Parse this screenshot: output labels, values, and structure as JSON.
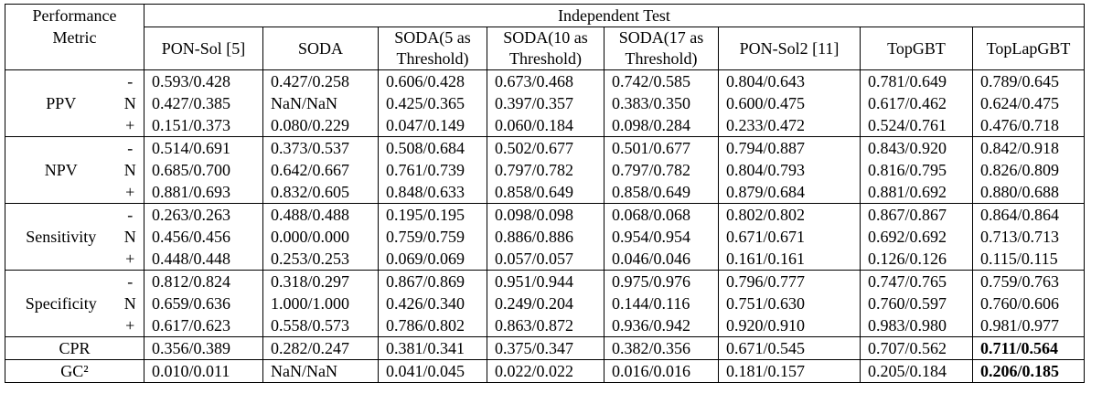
{
  "header": {
    "metric": "Performance Metric",
    "test": "Independent Test",
    "columns": [
      "PON-Sol [5]",
      "SODA",
      "SODA(5 as Threshold)",
      "SODA(10 as Threshold)",
      "SODA(17 as Threshold)",
      "PON-Sol2 [11]",
      "TopGBT",
      "TopLapGBT"
    ]
  },
  "groups": [
    {
      "name": "PPV",
      "rows": [
        {
          "sign": "-",
          "values": [
            "0.593/0.428",
            "0.427/0.258",
            "0.606/0.428",
            "0.673/0.468",
            "0.742/0.585",
            "0.804/0.643",
            "0.781/0.649",
            "0.789/0.645"
          ]
        },
        {
          "sign": "N",
          "values": [
            "0.427/0.385",
            "NaN/NaN",
            "0.425/0.365",
            "0.397/0.357",
            "0.383/0.350",
            "0.600/0.475",
            "0.617/0.462",
            "0.624/0.475"
          ]
        },
        {
          "sign": "+",
          "values": [
            "0.151/0.373",
            "0.080/0.229",
            "0.047/0.149",
            "0.060/0.184",
            "0.098/0.284",
            "0.233/0.472",
            "0.524/0.761",
            "0.476/0.718"
          ]
        }
      ]
    },
    {
      "name": "NPV",
      "rows": [
        {
          "sign": "-",
          "values": [
            "0.514/0.691",
            "0.373/0.537",
            "0.508/0.684",
            "0.502/0.677",
            "0.501/0.677",
            "0.794/0.887",
            "0.843/0.920",
            "0.842/0.918"
          ]
        },
        {
          "sign": "N",
          "values": [
            "0.685/0.700",
            "0.642/0.667",
            "0.761/0.739",
            "0.797/0.782",
            "0.797/0.782",
            "0.804/0.793",
            "0.816/0.795",
            "0.826/0.809"
          ]
        },
        {
          "sign": "+",
          "values": [
            "0.881/0.693",
            "0.832/0.605",
            "0.848/0.633",
            "0.858/0.649",
            "0.858/0.649",
            "0.879/0.684",
            "0.881/0.692",
            "0.880/0.688"
          ]
        }
      ]
    },
    {
      "name": "Sensitivity",
      "rows": [
        {
          "sign": "-",
          "values": [
            "0.263/0.263",
            "0.488/0.488",
            "0.195/0.195",
            "0.098/0.098",
            "0.068/0.068",
            "0.802/0.802",
            "0.867/0.867",
            "0.864/0.864"
          ]
        },
        {
          "sign": "N",
          "values": [
            "0.456/0.456",
            "0.000/0.000",
            "0.759/0.759",
            "0.886/0.886",
            "0.954/0.954",
            "0.671/0.671",
            "0.692/0.692",
            "0.713/0.713"
          ]
        },
        {
          "sign": "+",
          "values": [
            "0.448/0.448",
            "0.253/0.253",
            "0.069/0.069",
            "0.057/0.057",
            "0.046/0.046",
            "0.161/0.161",
            "0.126/0.126",
            "0.115/0.115"
          ]
        }
      ]
    },
    {
      "name": "Specificity",
      "rows": [
        {
          "sign": "-",
          "values": [
            "0.812/0.824",
            "0.318/0.297",
            "0.867/0.869",
            "0.951/0.944",
            "0.975/0.976",
            "0.796/0.777",
            "0.747/0.765",
            "0.759/0.763"
          ]
        },
        {
          "sign": "N",
          "values": [
            "0.659/0.636",
            "1.000/1.000",
            "0.426/0.340",
            "0.249/0.204",
            "0.144/0.116",
            "0.751/0.630",
            "0.760/0.597",
            "0.760/0.606"
          ]
        },
        {
          "sign": "+",
          "values": [
            "0.617/0.623",
            "0.558/0.573",
            "0.786/0.802",
            "0.863/0.872",
            "0.936/0.942",
            "0.920/0.910",
            "0.983/0.980",
            "0.981/0.977"
          ]
        }
      ]
    }
  ],
  "summary": [
    {
      "name": "CPR",
      "values": [
        "0.356/0.389",
        "0.282/0.247",
        "0.381/0.341",
        "0.375/0.347",
        "0.382/0.356",
        "0.671/0.545",
        "0.707/0.562",
        "0.711/0.564"
      ]
    },
    {
      "name": "GC²",
      "values": [
        "0.010/0.011",
        "NaN/NaN",
        "0.041/0.045",
        "0.022/0.022",
        "0.016/0.016",
        "0.181/0.157",
        "0.205/0.184",
        "0.206/0.185"
      ]
    }
  ]
}
